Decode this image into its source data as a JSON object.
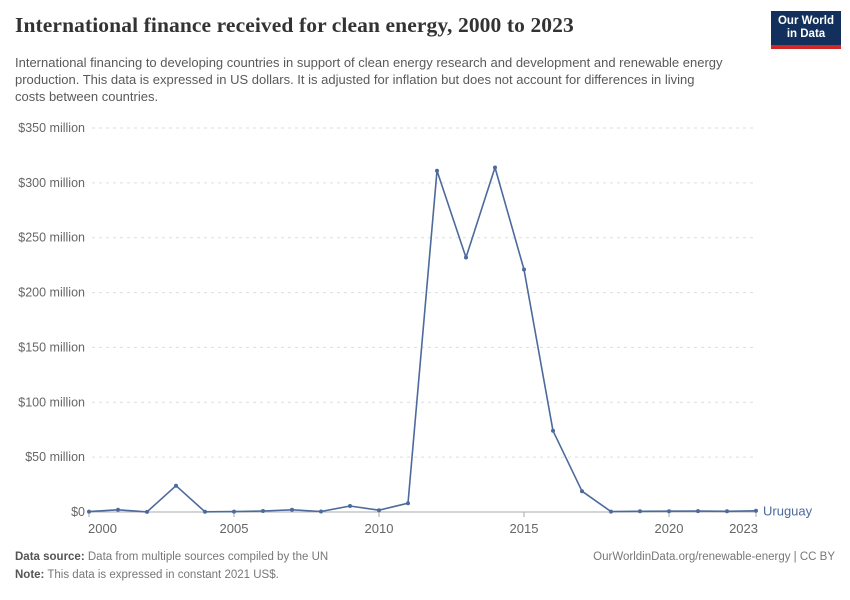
{
  "header": {
    "title": "International finance received for clean energy, 2000 to 2023"
  },
  "logo": {
    "line1": "Our World",
    "line2": "in Data",
    "bg_color": "#12305b",
    "accent_color": "#cf2626"
  },
  "subtitle": "International financing to developing countries in support of clean energy research and development and renewable energy production. This data is expressed in US dollars. It is adjusted for inflation but does not account for differences in living costs between countries.",
  "chart_data": {
    "type": "line",
    "title": "International finance received for clean energy, 2000 to 2023",
    "unit": "million US$ (constant 2021 US$)",
    "grid": "horizontal dashed",
    "legend_position": "end-of-line label",
    "xlim": [
      2000,
      2023
    ],
    "ylim": [
      0,
      350
    ],
    "xticks": [
      2000,
      2005,
      2010,
      2015,
      2020,
      2023
    ],
    "yticks": [
      0,
      50,
      100,
      150,
      200,
      250,
      300,
      350
    ],
    "ytick_labels": [
      "$0",
      "$50 million",
      "$100 million",
      "$150 million",
      "$200 million",
      "$250 million",
      "$300 million",
      "$350 million"
    ],
    "entity_label": "Uruguay",
    "line_color": "#4C6A9C",
    "axis_color": "#aaaaaa",
    "grid_color": "#dddddd",
    "tick_label_color": "#666666",
    "series": [
      {
        "name": "Uruguay",
        "x": [
          2000,
          2001,
          2002,
          2003,
          2004,
          2005,
          2006,
          2007,
          2008,
          2009,
          2010,
          2011,
          2012,
          2013,
          2014,
          2015,
          2016,
          2017,
          2018,
          2019,
          2020,
          2021,
          2022,
          2023
        ],
        "values": [
          0.4,
          2,
          0.1,
          24,
          0.2,
          0.4,
          0.9,
          2,
          0.5,
          5.5,
          1.6,
          8,
          311,
          232,
          314,
          221,
          74,
          19,
          0.4,
          0.6,
          0.7,
          0.8,
          0.6,
          1.1
        ]
      }
    ]
  },
  "footer": {
    "source_label": "Data source:",
    "source_text": " Data from multiple sources compiled by the UN",
    "note_label": "Note:",
    "note_text": " This data is expressed in constant 2021 US$.",
    "credit": "OurWorldinData.org/renewable-energy | CC BY"
  }
}
